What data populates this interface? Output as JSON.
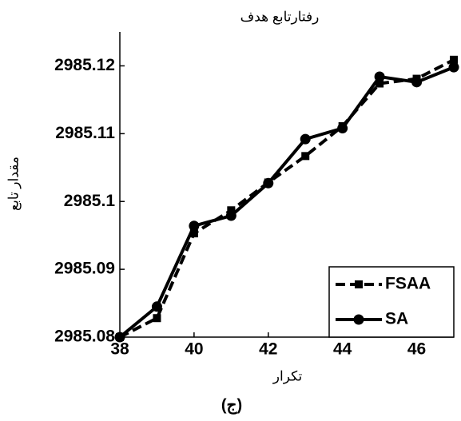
{
  "chart_data": {
    "type": "line",
    "title": "رفتارتابع هدف",
    "x_label": "تکرار",
    "y_label": "مقدار تابع",
    "caption": "(ج)",
    "x": [
      38,
      39,
      40,
      41,
      42,
      43,
      44,
      45,
      46,
      47
    ],
    "series": [
      {
        "name": "FSAA",
        "color": "#000000",
        "dash": true,
        "marker": "square",
        "values": [
          2985.08,
          2985.0828,
          2985.0953,
          2985.0987,
          2985.1028,
          2985.1067,
          2985.1111,
          2985.1174,
          2985.1181,
          2985.1209
        ]
      },
      {
        "name": "SA",
        "color": "#000000",
        "dash": false,
        "marker": "circle",
        "values": [
          2985.08,
          2985.0845,
          2985.0964,
          2985.0979,
          2985.1027,
          2985.1092,
          2985.1108,
          2985.1184,
          2985.1176,
          2985.1198
        ]
      }
    ],
    "xlim": [
      38,
      47
    ],
    "xticks": [
      38,
      40,
      42,
      44,
      46
    ],
    "ylim": [
      2985.08,
      2985.125
    ],
    "yticks": [
      2985.08,
      2985.09,
      2985.1,
      2985.11,
      2985.12
    ],
    "legend": "lower right",
    "grid": false
  }
}
